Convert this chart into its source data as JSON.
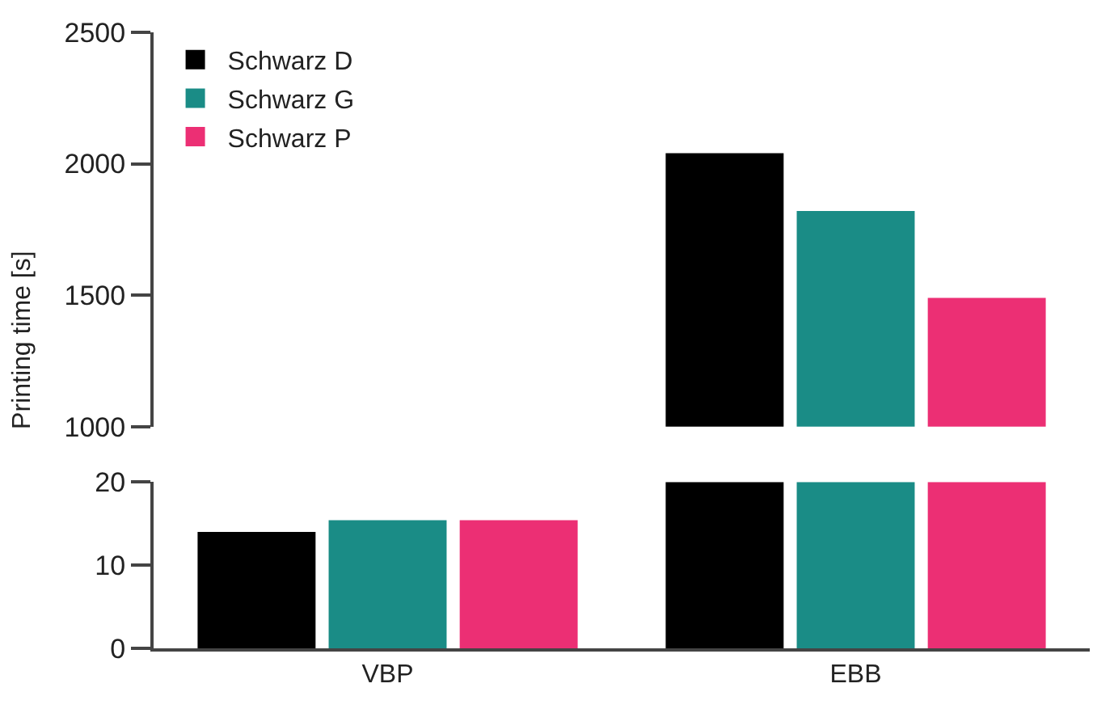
{
  "chart_data": [
    {
      "type": "bar",
      "ylabel": "Printing time [s]",
      "categories": [
        null,
        null
      ],
      "series": [
        {
          "name": "Schwarz D",
          "color": "#000000",
          "values": [
            null,
            2040
          ]
        },
        {
          "name": "Schwarz G",
          "color": "#1a8c86",
          "values": [
            null,
            1820
          ]
        },
        {
          "name": "Schwarz P",
          "color": "#ec2f74",
          "values": [
            null,
            1490
          ]
        }
      ],
      "ylim": [
        1000,
        2500
      ],
      "yticks": [
        1000,
        1500,
        2000,
        2500
      ],
      "legend": "top left",
      "tick_labels": "y"
    },
    {
      "type": "bar",
      "categories": [
        "VBP",
        "EBB"
      ],
      "series": [
        {
          "color": "#000000",
          "values": [
            14.0,
            20
          ]
        },
        {
          "color": "#1a8c86",
          "values": [
            15.4,
            20
          ]
        },
        {
          "color": "#ec2f74",
          "values": [
            15.4,
            20
          ]
        }
      ],
      "ylim": [
        0,
        20
      ],
      "yticks": [
        0,
        10,
        20
      ]
    }
  ]
}
